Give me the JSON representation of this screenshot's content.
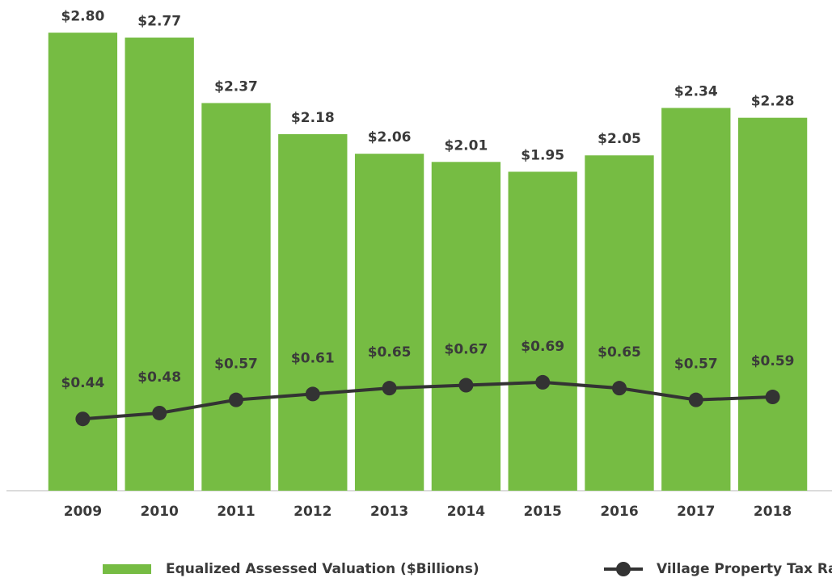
{
  "chart_data": {
    "type": "bar_line",
    "categories": [
      "2009",
      "2010",
      "2011",
      "2012",
      "2013",
      "2014",
      "2015",
      "2016",
      "2017",
      "2018"
    ],
    "series": [
      {
        "name": "Equalized Assessed Valuation ($Billions)",
        "type": "bar",
        "color": "#76bc43",
        "values": [
          2.8,
          2.77,
          2.37,
          2.18,
          2.06,
          2.01,
          1.95,
          2.05,
          2.34,
          2.28
        ],
        "value_labels": [
          "$2.80",
          "$2.77",
          "$2.37",
          "$2.18",
          "$2.06",
          "$2.01",
          "$1.95",
          "$2.05",
          "$2.34",
          "$2.28"
        ]
      },
      {
        "name": "Village Property Tax Rate",
        "type": "line",
        "axis": "y2",
        "color": "#333333",
        "values": [
          0.44,
          0.48,
          0.57,
          0.61,
          0.65,
          0.67,
          0.69,
          0.65,
          0.57,
          0.59
        ],
        "value_labels": [
          "$0.44",
          "$0.48",
          "$0.57",
          "$0.61",
          "$0.65",
          "$0.67",
          "$0.69",
          "$0.65",
          "$0.57",
          "$0.59"
        ]
      }
    ],
    "ylim": [
      0,
      3
    ],
    "y2lim": [
      -0.05,
      3.3
    ],
    "grid": false,
    "legend": "bottom"
  }
}
